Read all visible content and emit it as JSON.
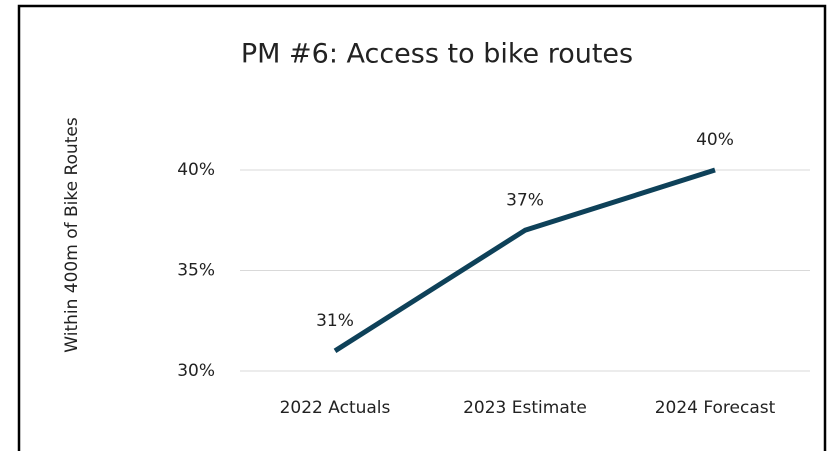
{
  "chart_data": {
    "type": "line",
    "title": "PM #6: Access to bike routes",
    "y_label": "Within 400m of Bike Routes",
    "categories": [
      "2022 Actuals",
      "2023 Estimate",
      "2024 Forecast"
    ],
    "series": [
      {
        "name": "Within 400m of Bike Routes",
        "color": "#0e4159",
        "values": [
          31,
          37,
          40
        ],
        "value_labels": [
          "31%",
          "37%",
          "40%"
        ]
      }
    ],
    "ylim": [
      30,
      40
    ],
    "yticks": [
      {
        "value": 30,
        "label": "30%"
      },
      {
        "value": 35,
        "label": "35%"
      },
      {
        "value": 40,
        "label": "40%"
      }
    ],
    "grid": true
  }
}
